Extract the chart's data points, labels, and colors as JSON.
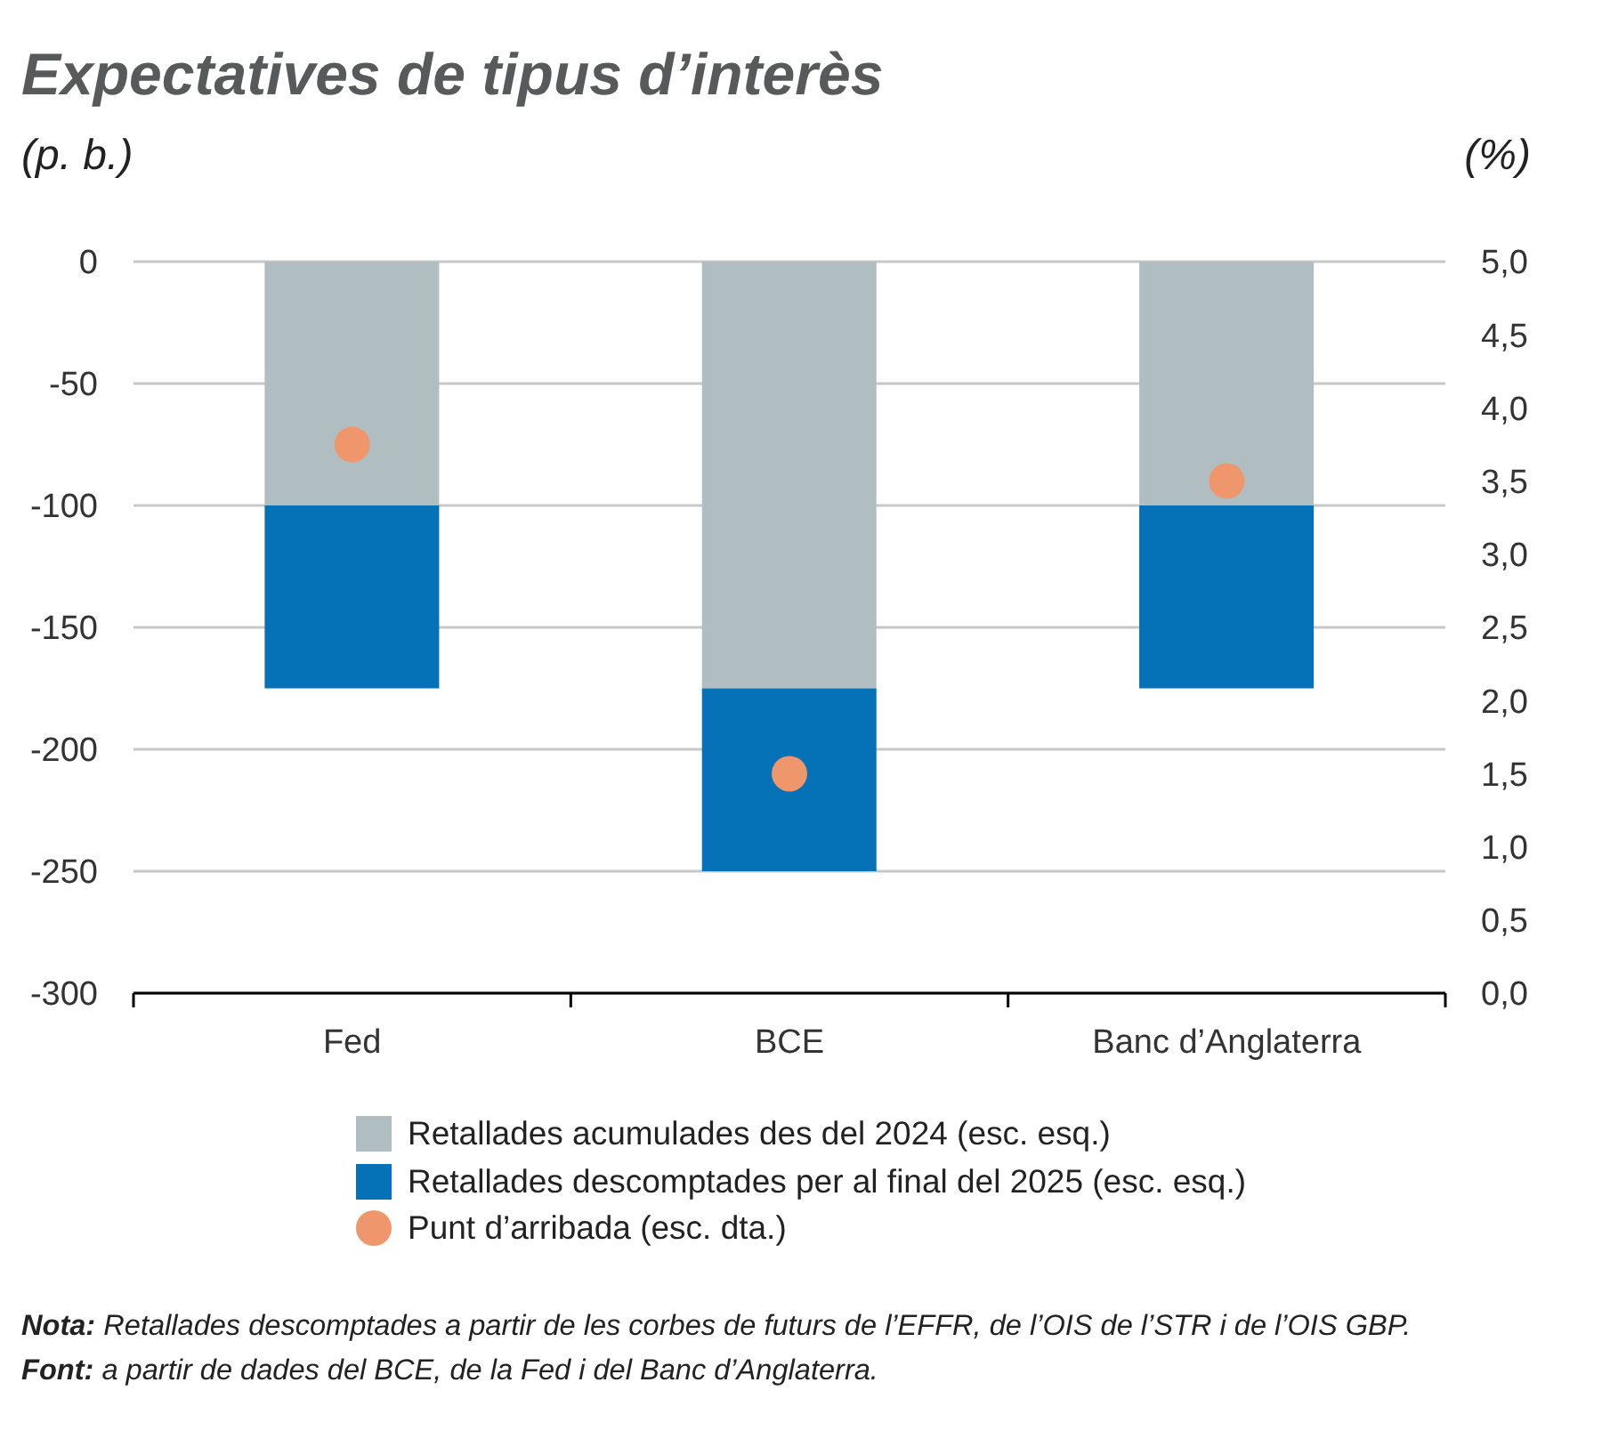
{
  "chart_data": {
    "type": "bar",
    "title": "Expectatives de tipus d’interès",
    "ylabel": "(p. b.)",
    "y2label": "(%)",
    "categories": [
      "Fed",
      "BCE",
      "Banc d’Anglaterra"
    ],
    "series": [
      {
        "name": "Retallades acumulades des del 2024 (esc. esq.)",
        "color": "#b1bec1",
        "values": [
          -100,
          -175,
          -100
        ]
      },
      {
        "name": "Retallades descomptades per al final del 2025 (esc. esq.)",
        "color": "#0571b7",
        "values": [
          -75,
          -75,
          -75
        ]
      },
      {
        "name": "Punt d’arribada (esc. dta.)",
        "type": "scatter",
        "axis": "y2",
        "color": "#f0966c",
        "x": [
          "Fed",
          "BCE",
          "Banc d’Anglaterra"
        ],
        "values": [
          3.75,
          1.5,
          3.5
        ]
      }
    ],
    "stacked": true,
    "ylim": [
      -300,
      0
    ],
    "yticks": [
      -300,
      -250,
      -200,
      -150,
      -100,
      -50,
      0
    ],
    "y2lim": [
      0,
      5
    ],
    "y2ticks": [
      {
        "value": 0,
        "label": "0,0"
      },
      {
        "value": 0.5,
        "label": "0,5"
      },
      {
        "value": 1,
        "label": "1,0"
      },
      {
        "value": 1.5,
        "label": "1,5"
      },
      {
        "value": 2,
        "label": "2,0"
      },
      {
        "value": 2.5,
        "label": "2,5"
      },
      {
        "value": 3,
        "label": "3,0"
      },
      {
        "value": 3.5,
        "label": "3,5"
      },
      {
        "value": 4,
        "label": "4,0"
      },
      {
        "value": 4.5,
        "label": "4,5"
      },
      {
        "value": 5,
        "label": "5,0"
      }
    ],
    "grid": "y",
    "legend": "bottom",
    "marker": "circle",
    "annotations": [
      "Nota: Retallades descomptades a partir de les corbes de futurs de l’EFFR, de l’OIS de l’STR i de l’OIS GBP.",
      "Font: a partir de dades del BCE, de la Fed i del Banc d’Anglaterra."
    ]
  }
}
